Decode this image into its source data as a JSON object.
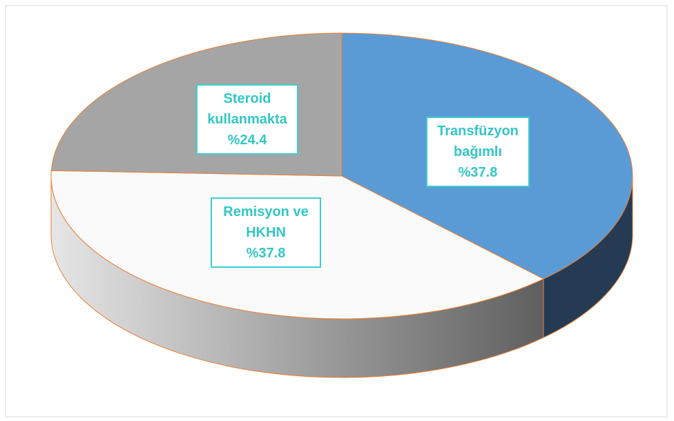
{
  "chart_data": {
    "type": "pie3d",
    "categories": [
      "Transfüzyon bağımlı",
      "Remisyon ve HKHN",
      "Steroid kullanmakta"
    ],
    "values": [
      37.8,
      37.8,
      24.4
    ],
    "value_labels": [
      "%37.8",
      "%37.8",
      "%24.4"
    ],
    "colors": [
      "#5b9bd5",
      "#fafafa",
      "#a5a5a5"
    ]
  }
}
